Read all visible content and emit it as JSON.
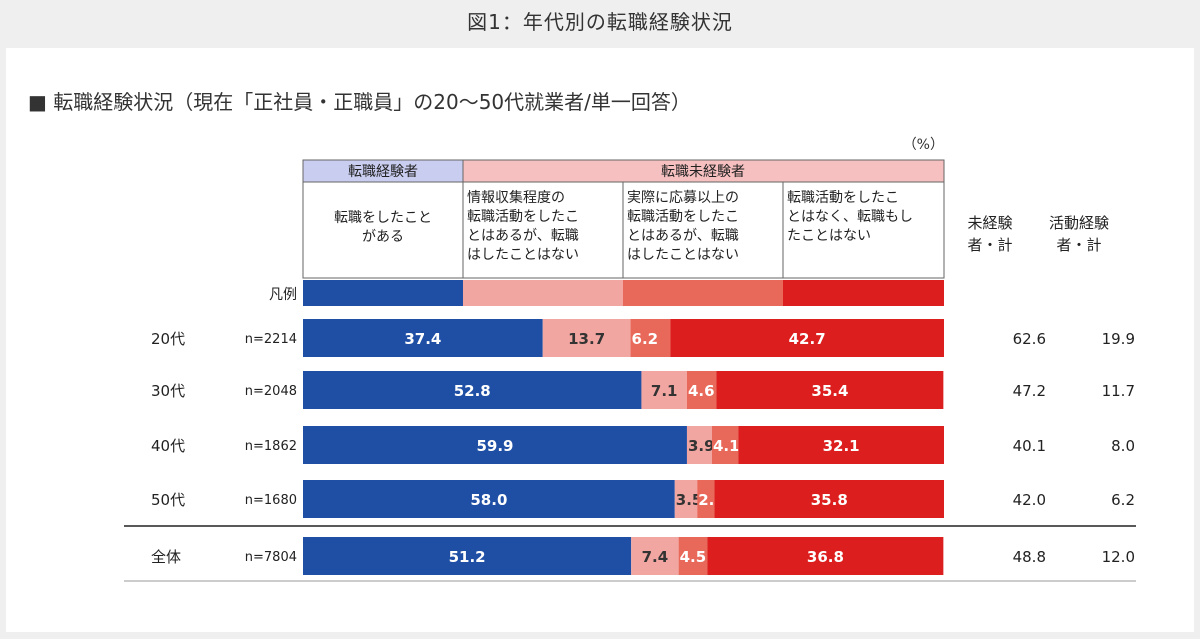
{
  "figure_caption": "図1：年代別の転職経験状況",
  "chart_data": {
    "type": "bar",
    "orientation": "horizontal",
    "stacked": true,
    "title": "■ 転職経験状況（現在「正社員・正職員」の20〜50代就業者/単一回答）",
    "unit": "（%）",
    "legend_label": "凡例",
    "group_headers": {
      "experienced": "転職経験者",
      "not_experienced": "転職未経験者"
    },
    "categories": [
      "20代",
      "30代",
      "40代",
      "50代",
      "全体"
    ],
    "sample_sizes": [
      "n=2214",
      "n=2048",
      "n=1862",
      "n=1680",
      "n=7804"
    ],
    "xlim": [
      0,
      100
    ],
    "series": [
      {
        "name": "転職をしたことがある",
        "name_lines": [
          "転職をしたこと",
          "がある"
        ],
        "color": "#1f4fa5",
        "values": [
          37.4,
          52.8,
          59.9,
          58.0,
          51.2
        ]
      },
      {
        "name": "情報収集程度の転職活動をしたことはあるが、転職はしたことはない",
        "name_lines": [
          "情報収集程度の",
          "転職活動をしたこ",
          "とはあるが、転職",
          "はしたことはない"
        ],
        "color": "#f2a6a2",
        "values": [
          13.7,
          7.1,
          3.9,
          3.5,
          7.4
        ]
      },
      {
        "name": "実際に応募以上の転職活動をしたことはあるが、転職はしたことはない",
        "name_lines": [
          "実際に応募以上の",
          "転職活動をしたこ",
          "とはあるが、転職",
          "はしたことはない"
        ],
        "color": "#e8685a",
        "values": [
          6.2,
          4.6,
          4.1,
          2.7,
          4.5
        ]
      },
      {
        "name": "転職活動をしたことはなく、転職もしたことはない",
        "name_lines": [
          "転職活動をしたこ",
          "とはなく、転職もし",
          "たことはない"
        ],
        "color": "#dc1e1e",
        "values": [
          42.7,
          35.4,
          32.1,
          35.8,
          36.8
        ]
      }
    ],
    "extra_columns": [
      {
        "header_lines": [
          "未経験",
          "者・計"
        ],
        "values": [
          "62.6",
          "47.2",
          "40.1",
          "42.0",
          "48.8"
        ]
      },
      {
        "header_lines": [
          "活動経験",
          "者・計"
        ],
        "values": [
          "19.9",
          "11.7",
          "8.0",
          "6.2",
          "12.0"
        ]
      }
    ],
    "colors": {
      "header_experienced_bg": "#c9cdf0",
      "header_not_experienced_bg": "#f6c0c0"
    }
  }
}
